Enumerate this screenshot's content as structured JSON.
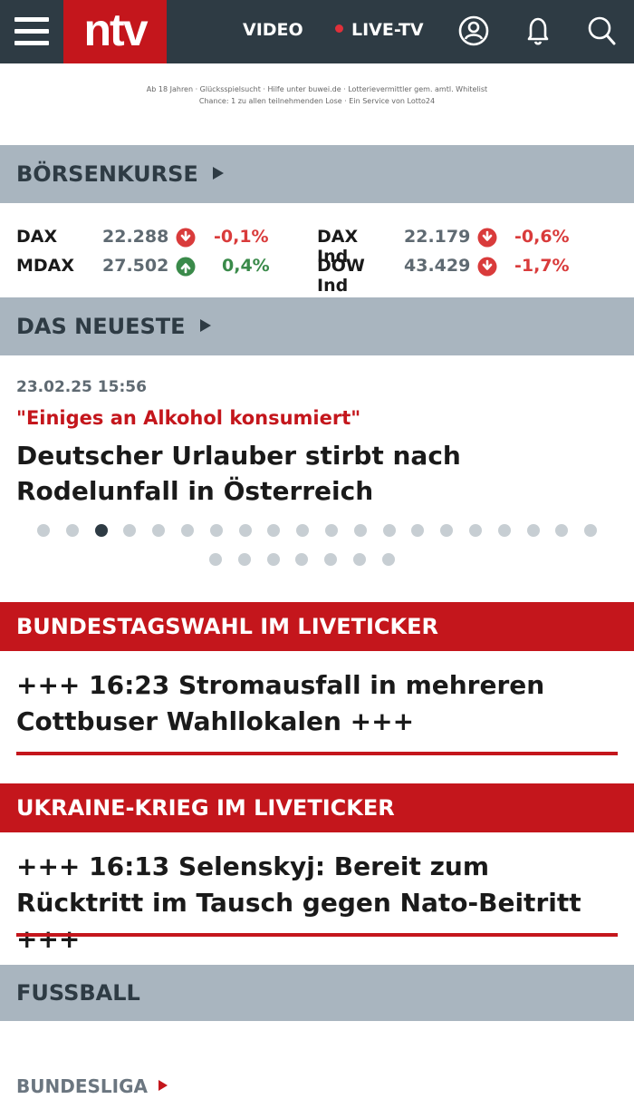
{
  "header": {
    "logo": "ntv",
    "nav_video": "VIDEO",
    "nav_live": "LIVE-TV",
    "live_dot_color": "#e0303a",
    "icons": [
      "menu-icon",
      "user-icon",
      "bell-icon",
      "search-icon"
    ]
  },
  "ad": {
    "line1": "Ab 18 Jahren · Glücksspielsucht · Hilfe unter buwei.de · Lotterievermittler gem. amtl. Whitelist",
    "line2": "Chance: 1 zu allen teilnehmenden Lose · Ein Service von Lotto24"
  },
  "boersen": {
    "title": "BÖRSENKURSE",
    "stocks": [
      {
        "name": "DAX",
        "value": "22.288",
        "change": "-0,1%",
        "direction": "down"
      },
      {
        "name": "MDAX",
        "value": "27.502",
        "change": "0,4%",
        "direction": "up"
      },
      {
        "name": "DAX Ind",
        "value": "22.179",
        "change": "-0,6%",
        "direction": "down"
      },
      {
        "name": "DOW Ind",
        "value": "43.429",
        "change": "-1,7%",
        "direction": "down"
      }
    ],
    "colors": {
      "down": "#d93b3b",
      "up": "#3a8a4a"
    }
  },
  "neueste": {
    "title": "DAS NEUESTE",
    "date": "23.02.25 15:56",
    "kicker": "\"Einiges an Alkohol konsumiert\"",
    "headline": "Deutscher Urlauber stirbt nach Rodelunfall in Österreich",
    "carousel_total": 27,
    "carousel_active": 3
  },
  "wahl": {
    "title": "BUNDESTAGSWAHL IM LIVETICKER",
    "ticker": "+++ 16:23 Stromausfall in mehreren Cottbuser Wahllokalen +++"
  },
  "ukraine": {
    "title": "UKRAINE-KRIEG IM LIVETICKER",
    "ticker": "+++ 16:13 Selenskyj: Bereit zum Rücktritt im Tausch gegen Nato-Beitritt +++"
  },
  "fussball": {
    "title": "FUSSBALL",
    "sub_link": "BUNDESLIGA"
  },
  "colors": {
    "brand_red": "#c4161c",
    "header_bg": "#2e3b44",
    "section_bg": "#a9b5bf"
  }
}
